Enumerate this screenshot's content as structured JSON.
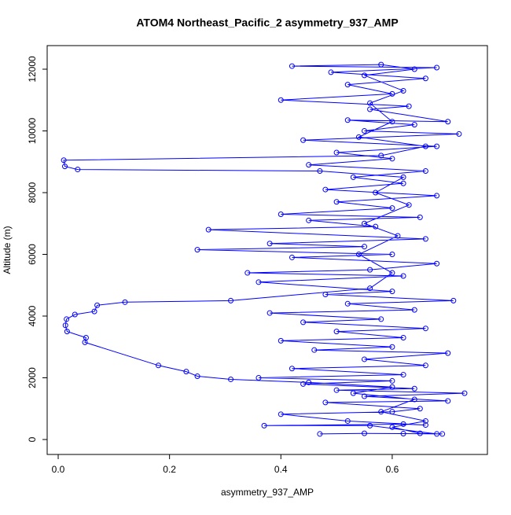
{
  "chart_data": {
    "type": "line",
    "markers": true,
    "title": "ATOM4 Northeast_Pacific_2 asymmetry_937_AMP",
    "x_label": "asymmetry_937_AMP",
    "y_label": "Altitude (m)",
    "color": "#0000ff",
    "x": [
      0.47,
      0.55,
      0.62,
      0.68,
      0.56,
      0.37,
      0.62,
      0.66,
      0.52,
      0.4,
      0.6,
      0.65,
      0.48,
      0.7,
      0.55,
      0.73,
      0.5,
      0.64,
      0.44,
      0.6,
      0.36,
      0.62,
      0.42,
      0.66,
      0.55,
      0.7,
      0.46,
      0.6,
      0.4,
      0.62,
      0.5,
      0.66,
      0.44,
      0.58,
      0.38,
      0.64,
      0.52,
      0.71,
      0.48,
      0.6,
      0.36,
      0.62,
      0.34,
      0.56,
      0.68,
      0.42,
      0.6,
      0.25,
      0.55,
      0.38,
      0.66,
      0.27,
      0.57,
      0.45,
      0.65,
      0.4,
      0.6,
      0.5,
      0.68,
      0.48,
      0.62,
      0.53,
      0.66,
      0.45,
      0.6,
      0.5,
      0.68,
      0.44,
      0.72,
      0.55,
      0.64,
      0.52,
      0.7,
      0.56,
      0.63,
      0.4,
      0.6,
      0.52,
      0.66,
      0.49,
      0.68,
      0.42,
      0.58,
      0.64,
      0.55,
      0.62,
      0.56,
      0.6,
      0.54,
      0.66,
      0.58,
      0.01,
      0.012,
      0.035,
      0.47,
      0.62,
      0.57,
      0.63,
      0.55,
      0.61,
      0.54,
      0.6,
      0.56,
      0.31,
      0.12,
      0.07,
      0.065,
      0.03,
      0.015,
      0.013,
      0.016,
      0.05,
      0.048,
      0.18,
      0.23,
      0.25,
      0.31,
      0.45,
      0.6,
      0.53,
      0.64,
      0.58,
      0.66,
      0.6,
      0.65,
      0.69
    ],
    "values": [
      180,
      200,
      190,
      180,
      450,
      450,
      500,
      470,
      600,
      820,
      900,
      1000,
      1200,
      1250,
      1400,
      1500,
      1600,
      1650,
      1800,
      1900,
      2000,
      2100,
      2300,
      2400,
      2600,
      2800,
      2900,
      3000,
      3200,
      3300,
      3500,
      3600,
      3800,
      3900,
      4100,
      4200,
      4400,
      4500,
      4700,
      4800,
      5100,
      5300,
      5400,
      5500,
      5700,
      5900,
      6000,
      6150,
      6250,
      6350,
      6500,
      6800,
      6900,
      7100,
      7200,
      7300,
      7500,
      7700,
      7900,
      8100,
      8300,
      8500,
      8700,
      8900,
      9100,
      9300,
      9500,
      9700,
      9900,
      10000,
      10200,
      10350,
      10300,
      10700,
      10800,
      11000,
      11200,
      11500,
      11700,
      11900,
      12050,
      12100,
      12150,
      12000,
      11800,
      11300,
      10900,
      10300,
      9800,
      9500,
      9200,
      9050,
      8850,
      8750,
      8700,
      8500,
      8000,
      7600,
      7000,
      6600,
      6000,
      5400,
      4900,
      4500,
      4450,
      4350,
      4150,
      4050,
      3900,
      3700,
      3500,
      3300,
      3150,
      2400,
      2200,
      2050,
      1950,
      1850,
      1700,
      1500,
      1300,
      900,
      600,
      400,
      200,
      180
    ],
    "xlim": [
      -0.0198,
      0.771
    ],
    "ylim": [
      -484,
      12764
    ],
    "xticks": [
      {
        "value": 0,
        "label": "0.0"
      },
      0.2,
      0.4,
      0.6
    ],
    "yticks": [
      0,
      2000,
      4000,
      6000,
      8000,
      10000,
      12000
    ]
  }
}
